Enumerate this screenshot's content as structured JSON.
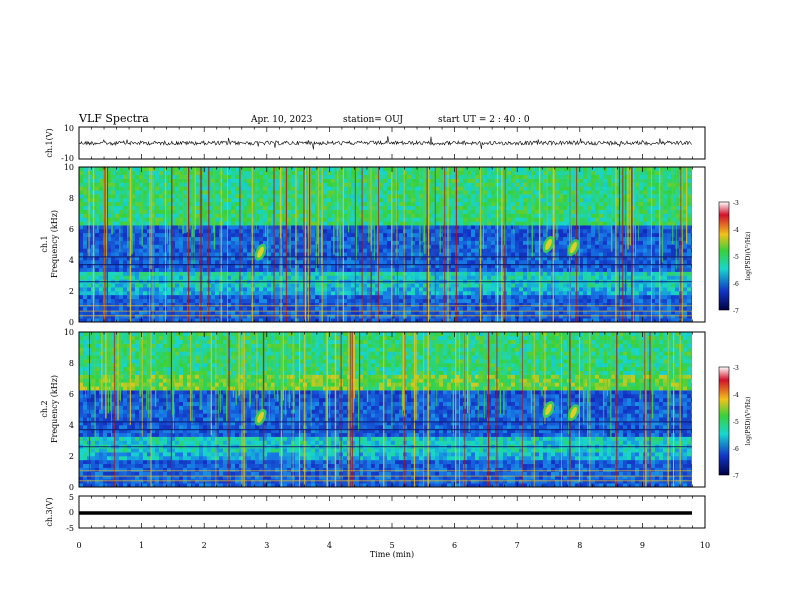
{
  "header": {
    "title": "VLF Spectra",
    "date": "Apr. 10, 2023",
    "station": "station= OUJ",
    "start": "start  UT =   2 : 40 : 0"
  },
  "chart_data": [
    {
      "type": "line",
      "panel": "ch1-waveform",
      "ylabel": "ch.1(V)",
      "ylim": [
        -10,
        10
      ],
      "y_ticks": [
        "10",
        "-10"
      ],
      "xlim": [
        0,
        10
      ],
      "trace_center": 0
    },
    {
      "type": "heatmap",
      "panel": "ch1-spectrogram",
      "ylabel_line1": "ch.1",
      "ylabel_line2": "Frequency (kHz)",
      "ylim": [
        0,
        10
      ],
      "y_ticks": [
        "0",
        "2",
        "4",
        "6",
        "8",
        "10"
      ],
      "xlim": [
        0,
        10
      ],
      "colorbar": {
        "label": "log(PSD)(V²/Hz)",
        "range": [
          -7,
          -3
        ],
        "ticks": [
          "-3",
          "-4",
          "-5",
          "-6",
          "-7"
        ]
      },
      "features": [
        {
          "time_min": 2.9,
          "freq_khz": 4.5
        },
        {
          "time_min": 7.5,
          "freq_khz": 5.0
        },
        {
          "time_min": 7.9,
          "freq_khz": 4.8
        }
      ]
    },
    {
      "type": "heatmap",
      "panel": "ch2-spectrogram",
      "ylabel_line1": "ch.2",
      "ylabel_line2": "Frequency (kHz)",
      "ylim": [
        0,
        10
      ],
      "y_ticks": [
        "0",
        "2",
        "4",
        "6",
        "8",
        "10"
      ],
      "xlim": [
        0,
        10
      ],
      "colorbar": {
        "label": "log(PSD)(V²/Hz)",
        "range": [
          -7,
          -3
        ],
        "ticks": [
          "-3",
          "-4",
          "-5",
          "-6",
          "-7"
        ]
      },
      "features": [
        {
          "time_min": 2.9,
          "freq_khz": 4.5
        },
        {
          "time_min": 7.5,
          "freq_khz": 5.0
        },
        {
          "time_min": 7.9,
          "freq_khz": 4.8
        }
      ]
    },
    {
      "type": "line",
      "panel": "ch3-waveform",
      "ylabel": "ch.3(V)",
      "ylim": [
        -5,
        5
      ],
      "y_ticks": [
        "5",
        "0",
        "-5"
      ],
      "xlim": [
        0,
        10
      ],
      "trace_value": -0.3,
      "xlabel": "Time (min)",
      "x_ticks": [
        "0",
        "1",
        "2",
        "3",
        "4",
        "5",
        "6",
        "7",
        "8",
        "9",
        "10"
      ]
    }
  ]
}
